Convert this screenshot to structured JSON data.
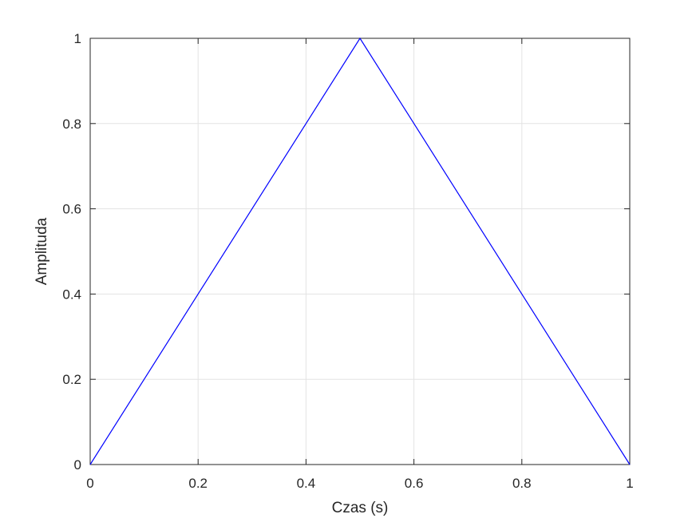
{
  "chart_data": {
    "type": "line",
    "title": "",
    "xlabel": "Czas (s)",
    "ylabel": "Amplituda",
    "xlim": [
      0,
      1
    ],
    "ylim": [
      0,
      1
    ],
    "xticks": [
      0,
      0.2,
      0.4,
      0.6,
      0.8,
      1
    ],
    "yticks": [
      0,
      0.2,
      0.4,
      0.6,
      0.8,
      1
    ],
    "xtick_labels": [
      "0",
      "0.2",
      "0.4",
      "0.6",
      "0.8",
      "1"
    ],
    "ytick_labels": [
      "0",
      "0.2",
      "0.4",
      "0.6",
      "0.8",
      "1"
    ],
    "grid": true,
    "legend": "none",
    "series": [
      {
        "color": "#0000ff",
        "x": [
          0,
          0.5,
          1
        ],
        "y": [
          0,
          1,
          0
        ]
      }
    ]
  }
}
